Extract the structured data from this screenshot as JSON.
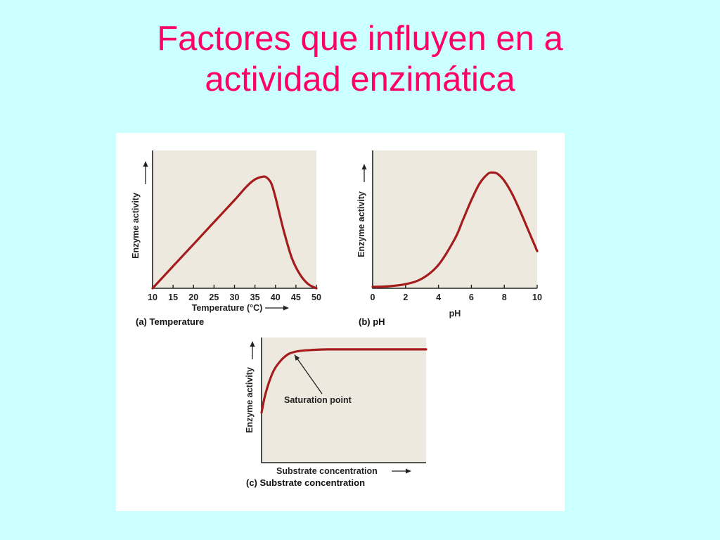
{
  "slide": {
    "title_line1": "Factores que influyen en a",
    "title_line2": "actividad enzimática",
    "title_color": "#ff0066",
    "background_color": "#ccffff"
  },
  "curve_color": "#a51c1c",
  "chart_data": [
    {
      "type": "line",
      "caption": "(a) Temperature",
      "xlabel": "Temperature (°C)",
      "ylabel": "Enzyme activity",
      "x_ticks": [
        10,
        15,
        20,
        25,
        30,
        35,
        40,
        45,
        50
      ],
      "xlim": [
        10,
        50
      ],
      "ylim": [
        0,
        1
      ],
      "x": [
        10,
        15,
        20,
        25,
        30,
        33,
        35,
        37,
        38,
        39,
        40,
        42,
        44,
        46,
        48,
        50
      ],
      "y": [
        0.0,
        0.16,
        0.32,
        0.48,
        0.64,
        0.74,
        0.79,
        0.81,
        0.8,
        0.76,
        0.66,
        0.42,
        0.22,
        0.1,
        0.03,
        0.0
      ]
    },
    {
      "type": "line",
      "caption": "(b) pH",
      "xlabel": "pH",
      "ylabel": "Enzyme activity",
      "x_ticks": [
        0,
        2,
        4,
        6,
        8,
        10
      ],
      "xlim": [
        0,
        10
      ],
      "ylim": [
        0,
        1
      ],
      "x": [
        0,
        1,
        2,
        3,
        4,
        5,
        5.5,
        6,
        6.5,
        7,
        7.3,
        7.6,
        8,
        8.5,
        9,
        9.5,
        10
      ],
      "y": [
        0.01,
        0.015,
        0.03,
        0.07,
        0.17,
        0.36,
        0.5,
        0.64,
        0.76,
        0.83,
        0.84,
        0.83,
        0.78,
        0.68,
        0.55,
        0.41,
        0.27
      ]
    },
    {
      "type": "line",
      "caption": "(c) Substrate concentration",
      "xlabel": "Substrate concentration",
      "ylabel": "Enzyme activity",
      "annotation": "Saturation point",
      "xlim": [
        0,
        10
      ],
      "ylim": [
        0,
        1
      ],
      "x": [
        0,
        0.2,
        0.5,
        0.8,
        1.2,
        1.6,
        2,
        2.5,
        3,
        4,
        6,
        8,
        10
      ],
      "y": [
        0.4,
        0.53,
        0.66,
        0.75,
        0.82,
        0.865,
        0.885,
        0.895,
        0.9,
        0.905,
        0.905,
        0.905,
        0.905
      ],
      "saturation_point": [
        2.0,
        0.885
      ]
    }
  ]
}
